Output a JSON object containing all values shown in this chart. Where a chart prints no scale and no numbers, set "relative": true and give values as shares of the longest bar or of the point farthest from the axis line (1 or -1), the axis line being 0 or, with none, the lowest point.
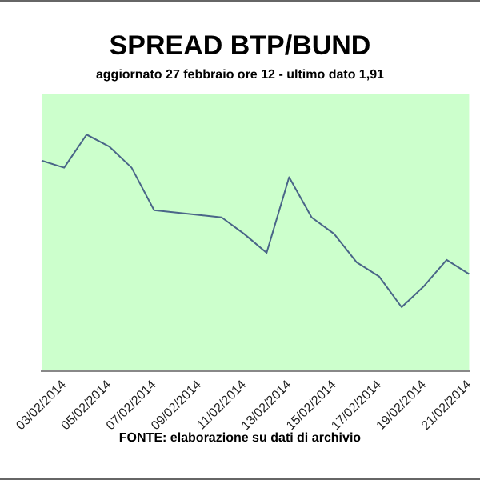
{
  "chart_data": {
    "type": "line",
    "title": "SPREAD BTP/BUND",
    "subtitle": "aggiornato 27 febbraio ore 12 - ultimo dato 1,91",
    "annotations": [
      "FONTE: elaborazione su dati di archivio"
    ],
    "categories": [
      null,
      "03/02/2014",
      null,
      "05/02/2014",
      null,
      "07/02/2014",
      null,
      "09/02/2014",
      null,
      "11/02/2014",
      null,
      "13/02/2014",
      null,
      "15/02/2014",
      null,
      "17/02/2014",
      null,
      "19/02/2014",
      null,
      "21/02/2014"
    ],
    "relative": true,
    "series": [
      {
        "color": "#4a6688",
        "values": [
          0.89,
          0.86,
          1,
          0.95,
          0.86,
          0.68,
          0.67,
          0.66,
          0.65,
          0.58,
          0.5,
          0.82,
          0.65,
          0.58,
          0.46,
          0.4,
          0.27,
          0.36,
          0.47,
          0.41
        ]
      }
    ],
    "grid": false,
    "legend": false,
    "marker": "none",
    "line_style": "solid"
  }
}
